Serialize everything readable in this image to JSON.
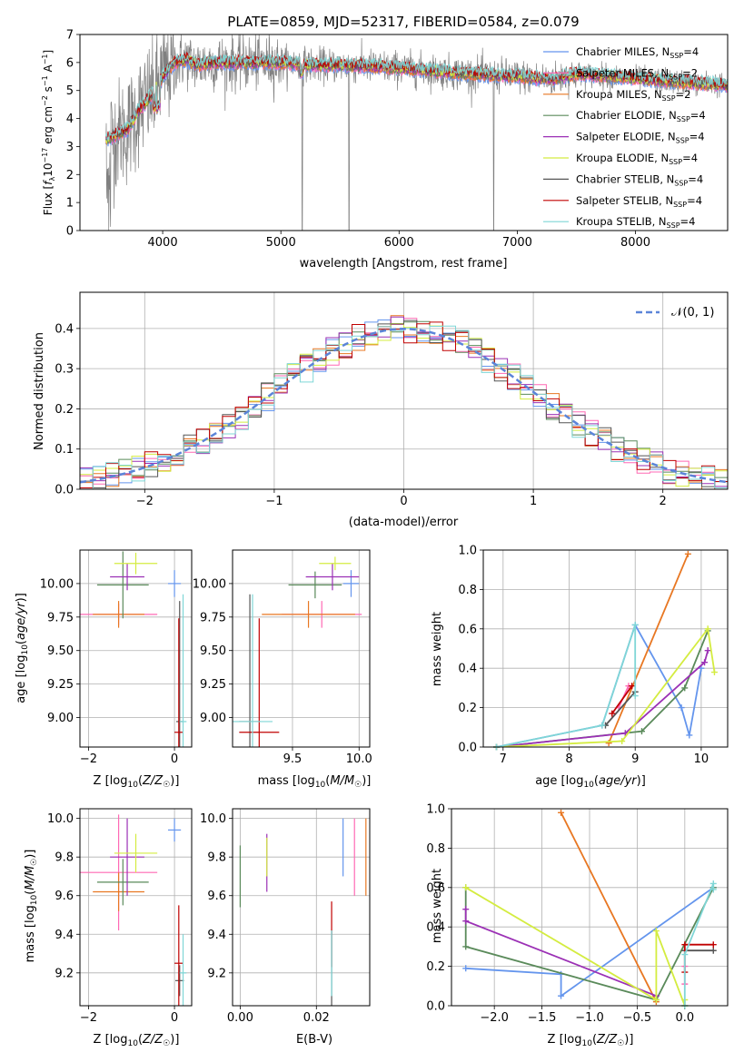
{
  "figure": {
    "title": "PLATE=0859, MJD=52317, FIBERID=0584, z=0.079"
  },
  "series_styles": [
    {
      "name": "Chabrier MILES, N_SSP=4",
      "label_main": "Chabrier MILES, N",
      "label_sub": "SSP",
      "label_tail": "=4",
      "color": "#6495ed"
    },
    {
      "name": "Salpeter MILES, N_SSP=2",
      "label_main": "Salpeter MILES, N",
      "label_sub": "SSP",
      "label_tail": "=2",
      "color": "#ff69b4"
    },
    {
      "name": "Kroupa MILES, N_SSP=2",
      "label_main": "Kroupa MILES, N",
      "label_sub": "SSP",
      "label_tail": "=2",
      "color": "#e87722"
    },
    {
      "name": "Chabrier ELODIE, N_SSP=4",
      "label_main": "Chabrier ELODIE, N",
      "label_sub": "SSP",
      "label_tail": "=4",
      "color": "#5a8a5a"
    },
    {
      "name": "Salpeter ELODIE, N_SSP=4",
      "label_main": "Salpeter ELODIE, N",
      "label_sub": "SSP",
      "label_tail": "=4",
      "color": "#9b30b5"
    },
    {
      "name": "Kroupa ELODIE, N_SSP=4",
      "label_main": "Kroupa ELODIE, N",
      "label_sub": "SSP",
      "label_tail": "=4",
      "color": "#d4ec40"
    },
    {
      "name": "Chabrier STELIB, N_SSP=4",
      "label_main": "Chabrier STELIB, N",
      "label_sub": "SSP",
      "label_tail": "=4",
      "color": "#555555"
    },
    {
      "name": "Salpeter STELIB, N_SSP=4",
      "label_main": "Salpeter STELIB, N",
      "label_sub": "SSP",
      "label_tail": "=4",
      "color": "#c00000"
    },
    {
      "name": "Kroupa STELIB, N_SSP=4",
      "label_main": "Kroupa STELIB, N",
      "label_sub": "SSP",
      "label_tail": "=4",
      "color": "#7fd6d6"
    }
  ],
  "chart_data": [
    {
      "id": "spectrum",
      "type": "line",
      "xlabel": "wavelength [Angstrom, rest frame]",
      "ylabel": "Flux [f_λ 10^-17 erg cm^-2 s^-1 A^-1]",
      "ylabel_parts": {
        "a": "Flux [",
        "b": "f",
        "c": "λ",
        "d": "10",
        "e": "−17",
        "f": " erg cm",
        "g": "−2",
        "h": " s",
        "i": "−1",
        "j": " A",
        "k": "−1",
        "l": "]"
      },
      "xlim": [
        3300,
        8780
      ],
      "ylim": [
        0,
        7
      ],
      "xticks": [
        4000,
        5000,
        6000,
        7000,
        8000
      ],
      "yticks": [
        0,
        1,
        2,
        3,
        4,
        5,
        6,
        7
      ],
      "grid": false,
      "legend": "right",
      "data_color": "#808080",
      "model_continuum": {
        "x": [
          3500,
          3600,
          3700,
          3800,
          3900,
          4000,
          4100,
          4200,
          4300,
          4400,
          4500,
          4700,
          5000,
          5300,
          5600,
          6000,
          6300,
          6600,
          7000,
          7300,
          7500,
          7800,
          8100,
          8400,
          8750
        ],
        "y": [
          3.2,
          3.4,
          3.6,
          4.3,
          4.8,
          5.5,
          6.0,
          6.1,
          5.9,
          6.0,
          6.0,
          6.0,
          6.0,
          5.9,
          5.9,
          5.8,
          5.7,
          5.6,
          5.5,
          5.4,
          5.6,
          5.5,
          5.4,
          5.3,
          5.2
        ]
      }
    },
    {
      "id": "residuals",
      "type": "histogram",
      "xlabel": "(data-model)/error",
      "ylabel": "Normed distribution",
      "xlim": [
        -2.5,
        2.5
      ],
      "ylim": [
        0,
        0.49
      ],
      "xticks": [
        -2,
        -1,
        0,
        1,
        2
      ],
      "yticks": [
        0.0,
        0.1,
        0.2,
        0.3,
        0.4
      ],
      "grid": true,
      "legend": "top-right",
      "legend_label": "𝒩(0, 1)",
      "reference_curve": "normal(0,1)",
      "reference_color": "#5b84d8"
    },
    {
      "id": "Z-age",
      "type": "errorbar",
      "xlabel": "Z [log10(Z/Z☉)]",
      "ylabel": "age [log10(age/yr)]",
      "xlim": [
        -2.2,
        0.4
      ],
      "ylim": [
        8.78,
        10.25
      ],
      "xticks": [
        -2,
        0
      ],
      "yticks": [
        9.0,
        9.25,
        9.5,
        9.75,
        10.0
      ],
      "grid": true,
      "points": [
        {
          "series": 0,
          "x": 0.0,
          "y": 10.0,
          "xerr": 0.15,
          "yerr": 0.1
        },
        {
          "series": 1,
          "x": -1.3,
          "y": 9.77,
          "xerr": 0.9,
          "yerr": 0.08
        },
        {
          "series": 2,
          "x": -1.3,
          "y": 9.77,
          "xerr": 0.6,
          "yerr": 0.1
        },
        {
          "series": 3,
          "x": -1.2,
          "y": 9.99,
          "xerr": 0.6,
          "yerr": 0.25
        },
        {
          "series": 4,
          "x": -1.1,
          "y": 10.05,
          "xerr": 0.4,
          "yerr": 0.1
        },
        {
          "series": 5,
          "x": -0.9,
          "y": 10.15,
          "xerr": 0.5,
          "yerr": 0.08
        },
        {
          "series": 6,
          "x": 0.12,
          "y": 8.97,
          "xerr": 0.08,
          "yerr": 0.9
        },
        {
          "series": 7,
          "x": 0.1,
          "y": 8.89,
          "xerr": 0.1,
          "yerr": 0.85
        },
        {
          "series": 8,
          "x": 0.2,
          "y": 8.97,
          "xerr": 0.08,
          "yerr": 0.95
        }
      ]
    },
    {
      "id": "mass-age",
      "type": "errorbar",
      "xlabel": "mass [log10(M/M☉)]",
      "ylabel": "",
      "xlim": [
        9.05,
        10.08
      ],
      "ylim": [
        8.78,
        10.25
      ],
      "xticks": [
        9.5,
        10.0
      ],
      "yticks": [
        9.0,
        9.25,
        9.5,
        9.75,
        10.0
      ],
      "grid": true,
      "points": [
        {
          "series": 0,
          "x": 9.94,
          "y": 10.0,
          "xerr": 0.06,
          "yerr": 0.1
        },
        {
          "series": 1,
          "x": 9.72,
          "y": 9.77,
          "xerr": 0.3,
          "yerr": 0.1
        },
        {
          "series": 2,
          "x": 9.62,
          "y": 9.77,
          "xerr": 0.35,
          "yerr": 0.1
        },
        {
          "series": 3,
          "x": 9.67,
          "y": 9.99,
          "xerr": 0.2,
          "yerr": 0.1
        },
        {
          "series": 4,
          "x": 9.8,
          "y": 10.05,
          "xerr": 0.2,
          "yerr": 0.1
        },
        {
          "series": 5,
          "x": 9.82,
          "y": 10.15,
          "xerr": 0.12,
          "yerr": 0.05
        },
        {
          "series": 6,
          "x": 9.18,
          "y": 8.97,
          "xerr": 0.08,
          "yerr": 0.95
        },
        {
          "series": 7,
          "x": 9.25,
          "y": 8.89,
          "xerr": 0.15,
          "yerr": 0.85
        },
        {
          "series": 8,
          "x": 9.2,
          "y": 8.97,
          "xerr": 0.15,
          "yerr": 0.95
        }
      ]
    },
    {
      "id": "age-weight",
      "type": "line",
      "xlabel": "age [log10(age/yr)]",
      "ylabel": "mass weight",
      "xlim": [
        6.7,
        10.4
      ],
      "ylim": [
        0,
        1.0
      ],
      "xticks": [
        7,
        8,
        9,
        10
      ],
      "yticks": [
        0.0,
        0.2,
        0.4,
        0.6,
        0.8,
        1.0
      ],
      "grid": true,
      "series": [
        {
          "series": 0,
          "x": [
            6.9,
            8.5,
            9.0,
            9.7,
            9.82,
            10.0
          ],
          "y": [
            0.0,
            0.11,
            0.62,
            0.2,
            0.06,
            0.4
          ]
        },
        {
          "series": 1,
          "x": [
            8.75,
            8.9
          ],
          "y": [
            0.2,
            0.31
          ]
        },
        {
          "series": 2,
          "x": [
            8.6,
            9.8
          ],
          "y": [
            0.02,
            0.98
          ]
        },
        {
          "series": 3,
          "x": [
            6.9,
            9.1,
            9.75,
            10.1
          ],
          "y": [
            0.0,
            0.08,
            0.3,
            0.59
          ]
        },
        {
          "series": 4,
          "x": [
            6.9,
            8.85,
            10.05,
            10.1
          ],
          "y": [
            0.0,
            0.07,
            0.43,
            0.49
          ]
        },
        {
          "series": 5,
          "x": [
            6.9,
            8.8,
            10.1,
            10.2
          ],
          "y": [
            0.0,
            0.03,
            0.6,
            0.38
          ]
        },
        {
          "series": 6,
          "x": [
            8.55,
            9.0
          ],
          "y": [
            0.11,
            0.28
          ]
        },
        {
          "series": 7,
          "x": [
            8.65,
            8.95
          ],
          "y": [
            0.17,
            0.31
          ]
        },
        {
          "series": 8,
          "x": [
            6.9,
            8.5,
            9.0,
            9.0
          ],
          "y": [
            0.0,
            0.11,
            0.62,
            0.26
          ]
        }
      ]
    },
    {
      "id": "Z-mass",
      "type": "errorbar",
      "xlabel": "Z [log10(Z/Z☉)]",
      "ylabel": "mass [log10(M/M☉)]",
      "xlim": [
        -2.2,
        0.4
      ],
      "ylim": [
        9.03,
        10.05
      ],
      "xticks": [
        -2,
        0
      ],
      "yticks": [
        9.2,
        9.4,
        9.6,
        9.8,
        10.0
      ],
      "grid": true,
      "points": [
        {
          "series": 0,
          "x": 0.0,
          "y": 9.94,
          "xerr": 0.15,
          "yerr": 0.06
        },
        {
          "series": 1,
          "x": -1.3,
          "y": 9.72,
          "xerr": 0.9,
          "yerr": 0.3
        },
        {
          "series": 2,
          "x": -1.3,
          "y": 9.62,
          "xerr": 0.6,
          "yerr": 0.1
        },
        {
          "series": 3,
          "x": -1.2,
          "y": 9.67,
          "xerr": 0.6,
          "yerr": 0.12
        },
        {
          "series": 4,
          "x": -1.1,
          "y": 9.8,
          "xerr": 0.4,
          "yerr": 0.2
        },
        {
          "series": 5,
          "x": -0.9,
          "y": 9.82,
          "xerr": 0.5,
          "yerr": 0.1
        },
        {
          "series": 6,
          "x": 0.12,
          "y": 9.16,
          "xerr": 0.1,
          "yerr": 0.08
        },
        {
          "series": 7,
          "x": 0.1,
          "y": 9.25,
          "xerr": 0.1,
          "yerr": 0.3
        },
        {
          "series": 8,
          "x": 0.2,
          "y": 9.2,
          "xerr": 0.08,
          "yerr": 0.2
        }
      ]
    },
    {
      "id": "ebv-mass",
      "type": "errorbar",
      "xlabel": "E(B-V)",
      "ylabel": "",
      "xlim": [
        -0.002,
        0.034
      ],
      "ylim": [
        9.03,
        10.05
      ],
      "xticks": [
        0.0,
        0.02
      ],
      "yticks": [
        9.2,
        9.4,
        9.6,
        9.8,
        10.0
      ],
      "grid": true,
      "points": [
        {
          "series": 0,
          "x": 0.027,
          "y": 9.85,
          "xerr": 0,
          "yerr": 0.15
        },
        {
          "series": 1,
          "x": 0.03,
          "y": 9.8,
          "xerr": 0,
          "yerr": 0.2
        },
        {
          "series": 2,
          "x": 0.033,
          "y": 9.8,
          "xerr": 0,
          "yerr": 0.2
        },
        {
          "series": 3,
          "x": 0.0,
          "y": 9.7,
          "xerr": 0,
          "yerr": 0.16
        },
        {
          "series": 4,
          "x": 0.007,
          "y": 9.77,
          "xerr": 0,
          "yerr": 0.15
        },
        {
          "series": 5,
          "x": 0.007,
          "y": 9.8,
          "xerr": 0,
          "yerr": 0.1
        },
        {
          "series": 6,
          "x": 0.024,
          "y": 9.22,
          "xerr": 0,
          "yerr": 0.2
        },
        {
          "series": 7,
          "x": 0.024,
          "y": 9.4,
          "xerr": 0,
          "yerr": 0.17
        },
        {
          "series": 8,
          "x": 0.024,
          "y": 9.25,
          "xerr": 0,
          "yerr": 0.17
        }
      ]
    },
    {
      "id": "Z-weight",
      "type": "line",
      "xlabel": "Z [log10(Z/Z☉)]",
      "ylabel": "mass weight",
      "xlim": [
        -2.45,
        0.45
      ],
      "ylim": [
        0,
        1.0
      ],
      "xticks": [
        -2.0,
        -1.5,
        -1.0,
        -0.5,
        0.0
      ],
      "yticks": [
        0.0,
        0.2,
        0.4,
        0.6,
        0.8,
        1.0
      ],
      "grid": true,
      "series": [
        {
          "series": 0,
          "x": [
            -2.3,
            -1.3,
            -1.3,
            0.3
          ],
          "y": [
            0.19,
            0.16,
            0.05,
            0.6
          ]
        },
        {
          "series": 1,
          "x": [
            0.0,
            0.0
          ],
          "y": [
            0.2,
            0.11
          ]
        },
        {
          "series": 2,
          "x": [
            -1.3,
            -0.3
          ],
          "y": [
            0.98,
            0.02
          ]
        },
        {
          "series": 3,
          "x": [
            -2.3,
            -2.3,
            -0.3,
            0.3
          ],
          "y": [
            0.6,
            0.3,
            0.03,
            0.6
          ]
        },
        {
          "series": 4,
          "x": [
            -2.3,
            -2.3,
            -0.3
          ],
          "y": [
            0.49,
            0.43,
            0.05
          ]
        },
        {
          "series": 5,
          "x": [
            -2.3,
            -0.3,
            -0.3,
            0.0,
            0.0
          ],
          "y": [
            0.6,
            0.03,
            0.38,
            0.0,
            0.03
          ]
        },
        {
          "series": 6,
          "x": [
            0.0,
            0.3
          ],
          "y": [
            0.28,
            0.28
          ]
        },
        {
          "series": 7,
          "x": [
            0.0,
            0.0,
            0.3
          ],
          "y": [
            0.17,
            0.31,
            0.31
          ]
        },
        {
          "series": 8,
          "x": [
            0.0,
            0.0,
            0.3,
            0.3
          ],
          "y": [
            0.0,
            0.26,
            0.62,
            0.59
          ]
        }
      ]
    }
  ]
}
